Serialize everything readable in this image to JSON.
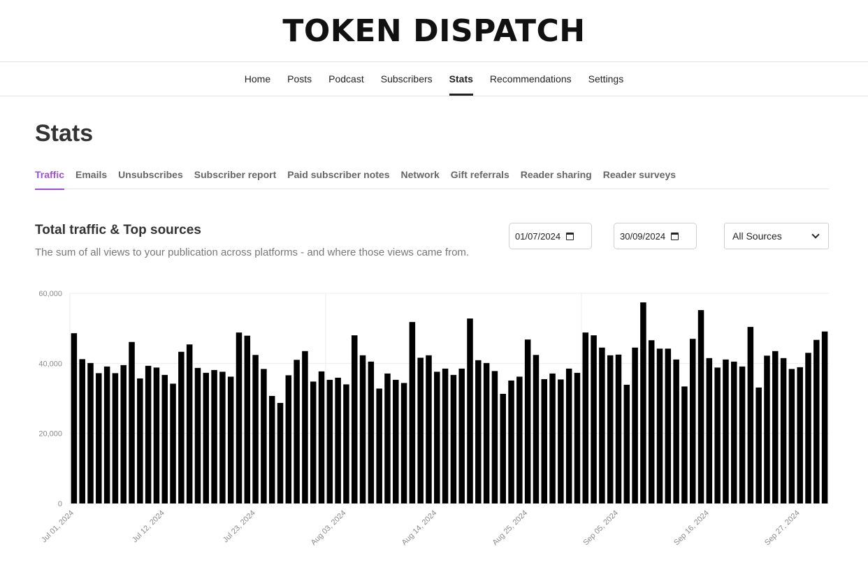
{
  "masthead": {
    "title": "TOKEN DISPATCH"
  },
  "nav": {
    "items": [
      {
        "label": "Home",
        "active": false
      },
      {
        "label": "Posts",
        "active": false
      },
      {
        "label": "Podcast",
        "active": false
      },
      {
        "label": "Subscribers",
        "active": false
      },
      {
        "label": "Stats",
        "active": true
      },
      {
        "label": "Recommendations",
        "active": false
      },
      {
        "label": "Settings",
        "active": false
      }
    ]
  },
  "page": {
    "title": "Stats"
  },
  "subtabs": [
    {
      "label": "Traffic",
      "active": true
    },
    {
      "label": "Emails",
      "active": false
    },
    {
      "label": "Unsubscribes",
      "active": false
    },
    {
      "label": "Subscriber report",
      "active": false
    },
    {
      "label": "Paid subscriber notes",
      "active": false
    },
    {
      "label": "Network",
      "active": false
    },
    {
      "label": "Gift referrals",
      "active": false
    },
    {
      "label": "Reader sharing",
      "active": false
    },
    {
      "label": "Reader surveys",
      "active": false
    }
  ],
  "section": {
    "title": "Total traffic & Top sources",
    "description": "The sum of all views to your publication across platforms - and where those views came from."
  },
  "filters": {
    "start_date": "01/07/2024",
    "end_date": "30/09/2024",
    "source": "All Sources",
    "calendar_icon": "calendar-icon",
    "dropdown_icon": "chevron-down-icon"
  },
  "colors": {
    "accent": "#9b4fd6",
    "bar": "#000000",
    "text": "#222222"
  },
  "chart_data": {
    "type": "bar",
    "xlabel": "",
    "ylabel": "",
    "ylim": [
      0,
      60000
    ],
    "yticks": [
      "0",
      "20,000",
      "40,000",
      "60,000"
    ],
    "xtick_labels": [
      "Jul 01, 2024",
      "Jul 12, 2024",
      "Jul 23, 2024",
      "Aug 03, 2024",
      "Aug 14, 2024",
      "Aug 25, 2024",
      "Sep 05, 2024",
      "Sep 16, 2024",
      "Sep 27, 2024"
    ],
    "grid": true,
    "start_date": "2024-07-01",
    "end_date": "2024-09-30",
    "values": [
      48600,
      41200,
      40100,
      37200,
      39100,
      37200,
      39500,
      46100,
      35700,
      39300,
      38800,
      36700,
      34200,
      43300,
      45400,
      38700,
      37300,
      38100,
      37600,
      36200,
      48800,
      47900,
      42400,
      38400,
      30700,
      28700,
      36600,
      41000,
      43500,
      34800,
      37700,
      35300,
      35900,
      34000,
      48000,
      42300,
      40500,
      32800,
      37100,
      35300,
      34400,
      51800,
      41600,
      42300,
      37600,
      38500,
      36700,
      38500,
      52800,
      40900,
      40100,
      37800,
      31300,
      35100,
      36200,
      46800,
      42400,
      35500,
      37100,
      35400,
      38500,
      37300,
      48800,
      48000,
      44500,
      42300,
      42500,
      33900,
      44500,
      57400,
      46600,
      44200,
      44200,
      41100,
      33400,
      47000,
      55200,
      41500,
      38800,
      41100,
      40500,
      39100,
      50400,
      33100,
      42200,
      43500,
      41500,
      38400,
      38900,
      43000,
      46700,
      49100
    ]
  }
}
